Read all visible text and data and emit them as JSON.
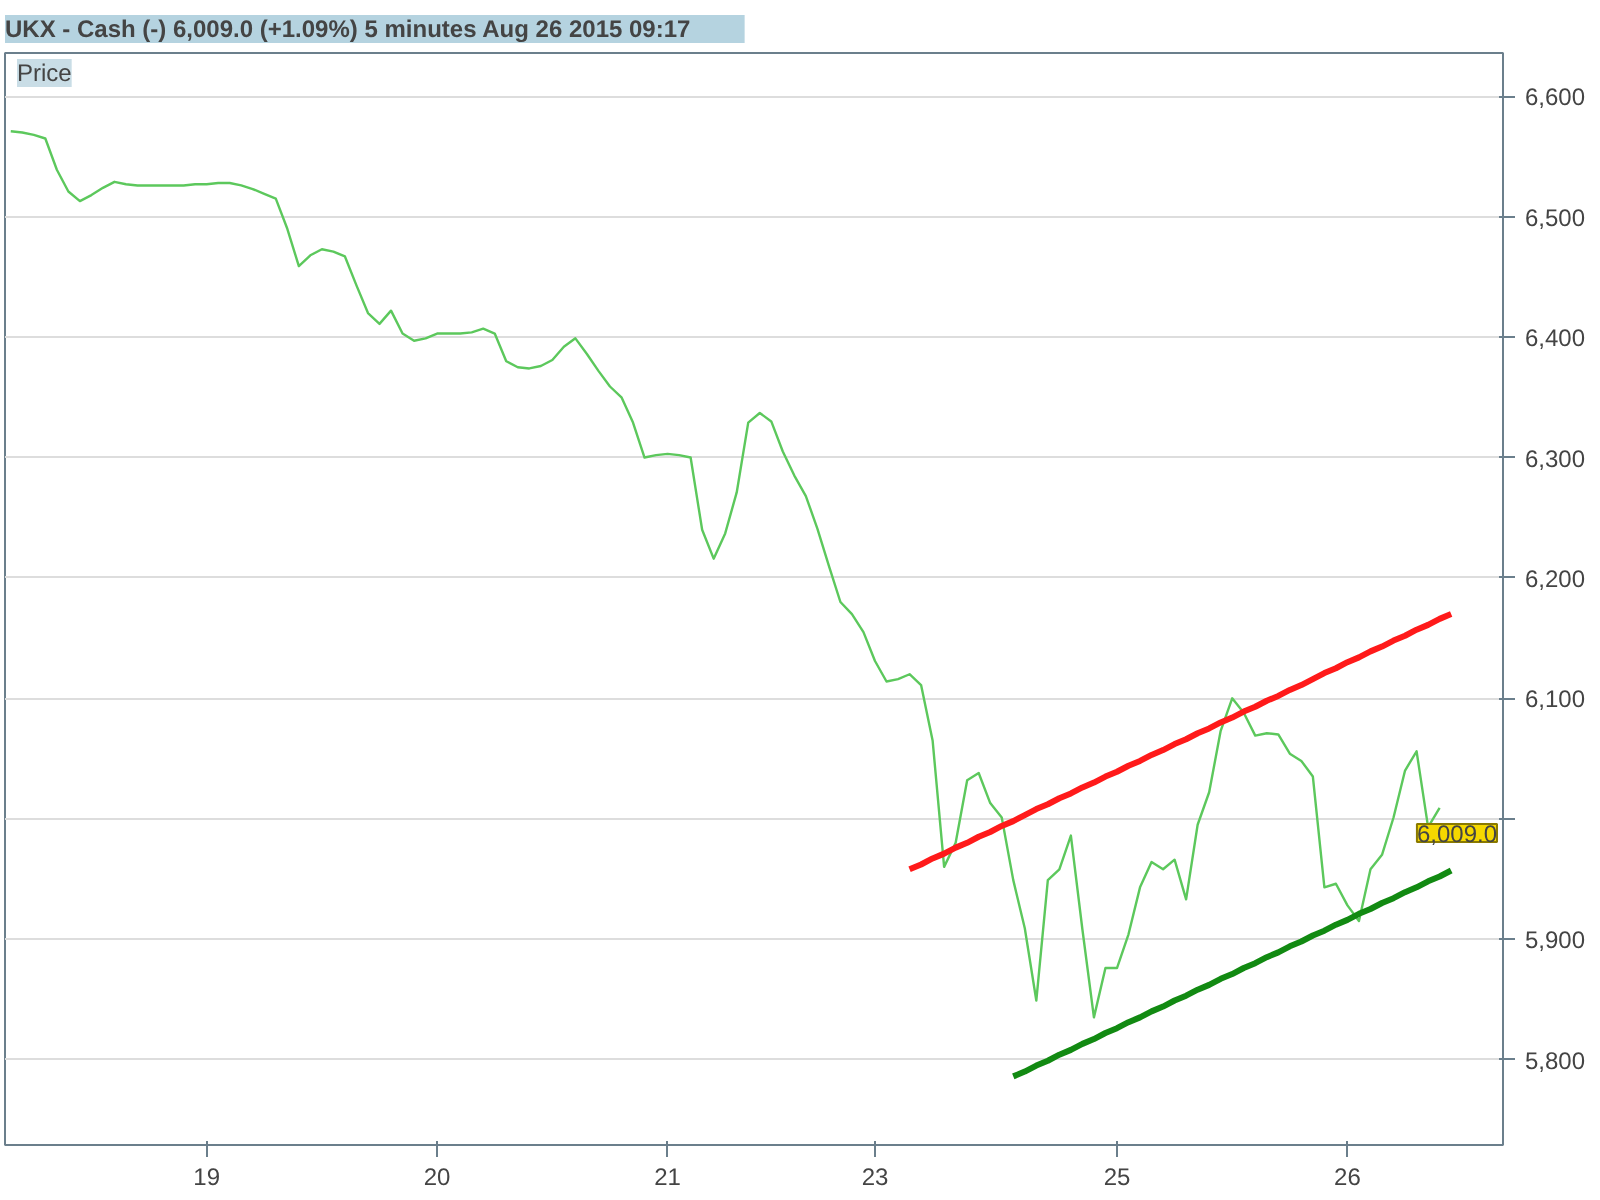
{
  "chart_data": {
    "type": "line",
    "title": "UKX - Cash (-)    6,009.0 (+1.09%)    5 minutes   Aug 26 2015 09:17",
    "annotations": [
      "Price",
      "6,009.0"
    ],
    "categories": [
      null,
      null,
      null,
      null,
      null,
      null,
      null,
      null,
      null,
      null,
      null,
      null,
      null,
      null,
      null,
      null,
      null,
      "19",
      null,
      null,
      null,
      null,
      null,
      null,
      null,
      null,
      null,
      null,
      null,
      null,
      null,
      null,
      null,
      null,
      null,
      null,
      null,
      "20",
      null,
      null,
      null,
      null,
      null,
      null,
      null,
      null,
      null,
      null,
      null,
      null,
      null,
      null,
      null,
      null,
      null,
      null,
      null,
      "21",
      null,
      null,
      null,
      null,
      null,
      null,
      null,
      null,
      null,
      null,
      null,
      null,
      null,
      null,
      null,
      null,
      null,
      "23",
      null,
      null,
      null,
      null,
      null,
      null,
      null,
      null,
      null,
      null,
      null,
      null,
      null,
      null,
      null,
      null,
      null,
      null,
      null,
      null,
      "25",
      null,
      null,
      null,
      null,
      null,
      null,
      null,
      null,
      null,
      null,
      null,
      null,
      null,
      null,
      null,
      null,
      null,
      null,
      null,
      "26",
      null,
      null,
      null,
      null,
      null,
      null,
      null,
      null,
      null,
      null,
      null,
      null,
      null
    ],
    "ylim": [
      5729,
      6636
    ],
    "yticks": [
      {
        "value": 5800,
        "label": "5,800"
      },
      {
        "value": 5900,
        "label": "5,900"
      },
      {
        "value": 6000,
        "label": null
      },
      {
        "value": 6100,
        "label": "6,100"
      },
      {
        "value": 6200,
        "label": "6,200"
      },
      {
        "value": 6300,
        "label": "6,300"
      },
      {
        "value": 6400,
        "label": "6,400"
      },
      {
        "value": 6500,
        "label": "6,500"
      },
      {
        "value": 6600,
        "label": "6,600"
      }
    ],
    "grid": "y",
    "marker": "none",
    "line_style": "solid",
    "series": [
      {
        "color": "#5cc85c",
        "values": [
          6571,
          6570,
          6568,
          6565,
          6539,
          6521,
          6513,
          6518,
          6524,
          6529,
          6527,
          6526,
          6526,
          6526,
          6526,
          6526,
          6527,
          6527,
          6528,
          6528,
          6526,
          6523,
          6519,
          6515,
          6490,
          6459,
          6468,
          6473,
          6471,
          6467,
          6443,
          6420,
          6411,
          6422,
          6403,
          6397,
          6399,
          6403,
          6403,
          6403,
          6404,
          6407,
          6403,
          6380,
          6375,
          6374,
          6376,
          6381,
          6392,
          6399,
          6386,
          6372,
          6359,
          6350,
          6329,
          6300,
          6302,
          6303,
          6302,
          6300,
          6240,
          6216,
          6237,
          6271,
          6329,
          6337,
          6330,
          6305,
          6285,
          6268,
          6241,
          6210,
          6180,
          6170,
          6155,
          6131,
          6114,
          6116,
          6120,
          6111,
          6065,
          5960,
          5980,
          6032,
          6038,
          6013,
          6001,
          5949,
          5909,
          5849,
          5949,
          5958,
          5986,
          5908,
          5835,
          5876,
          5876,
          5904,
          5943,
          5964,
          5958,
          5966,
          5933,
          5995,
          6022,
          6073,
          6100,
          6088,
          6069,
          6071,
          6070,
          6054,
          6048,
          6035,
          5943,
          5946,
          5928,
          5915,
          5958,
          5970,
          6001,
          6040,
          6056,
          5993,
          6009,
          null,
          null,
          null,
          null,
          null
        ]
      },
      {
        "color": "#ff1a1a",
        "values": [
          null,
          null,
          null,
          null,
          null,
          null,
          null,
          null,
          null,
          null,
          null,
          null,
          null,
          null,
          null,
          null,
          null,
          null,
          null,
          null,
          null,
          null,
          null,
          null,
          null,
          null,
          null,
          null,
          null,
          null,
          null,
          null,
          null,
          null,
          null,
          null,
          null,
          null,
          null,
          null,
          null,
          null,
          null,
          null,
          null,
          null,
          null,
          null,
          null,
          null,
          null,
          null,
          null,
          null,
          null,
          null,
          null,
          null,
          null,
          null,
          null,
          null,
          null,
          null,
          null,
          null,
          null,
          null,
          null,
          null,
          null,
          null,
          null,
          null,
          null,
          null,
          null,
          null,
          5958,
          5962,
          5967,
          5971,
          5976,
          5980,
          5985,
          5989,
          5994,
          5998,
          6003,
          6008,
          6012,
          6017,
          6021,
          6026,
          6030,
          6035,
          6039,
          6044,
          6048,
          6053,
          6057,
          6062,
          6066,
          6071,
          6075,
          6080,
          6084,
          6089,
          6093,
          6098,
          6102,
          6107,
          6111,
          6116,
          6121,
          6125,
          6130,
          6134,
          6139,
          6143,
          6148,
          6152,
          6157,
          6161,
          6166,
          6170,
          null,
          null,
          null,
          null
        ]
      },
      {
        "color": "#128a12",
        "values": [
          null,
          null,
          null,
          null,
          null,
          null,
          null,
          null,
          null,
          null,
          null,
          null,
          null,
          null,
          null,
          null,
          null,
          null,
          null,
          null,
          null,
          null,
          null,
          null,
          null,
          null,
          null,
          null,
          null,
          null,
          null,
          null,
          null,
          null,
          null,
          null,
          null,
          null,
          null,
          null,
          null,
          null,
          null,
          null,
          null,
          null,
          null,
          null,
          null,
          null,
          null,
          null,
          null,
          null,
          null,
          null,
          null,
          null,
          null,
          null,
          null,
          null,
          null,
          null,
          null,
          null,
          null,
          null,
          null,
          null,
          null,
          null,
          null,
          null,
          null,
          null,
          null,
          null,
          null,
          null,
          null,
          null,
          null,
          null,
          null,
          null,
          null,
          5786,
          5790,
          5795,
          5799,
          5804,
          5808,
          5813,
          5817,
          5822,
          5826,
          5831,
          5835,
          5840,
          5844,
          5849,
          5853,
          5858,
          5862,
          5867,
          5871,
          5876,
          5880,
          5885,
          5889,
          5894,
          5898,
          5903,
          5907,
          5912,
          5916,
          5921,
          5925,
          5930,
          5934,
          5939,
          5943,
          5948,
          5952,
          5957,
          null,
          null,
          null,
          null
        ]
      }
    ]
  }
}
